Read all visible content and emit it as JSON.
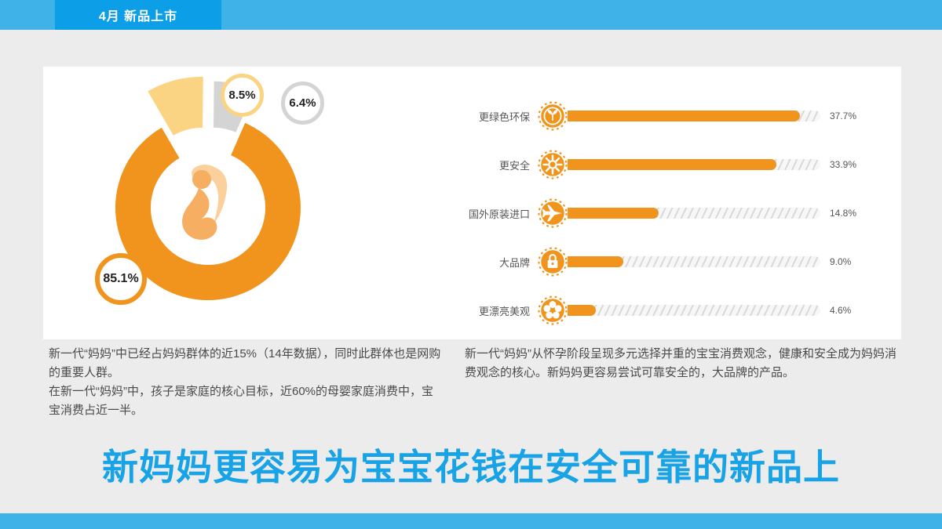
{
  "header": {
    "tag_label": "4月 新品上市"
  },
  "chart_data": [
    {
      "type": "pie",
      "donut": true,
      "labels": [
        "85.1%",
        "8.5%",
        "6.4%"
      ],
      "values": [
        85.1,
        8.5,
        6.4
      ],
      "colors": [
        "#F0941D",
        "#FAD483",
        "#D4D4D4"
      ],
      "center_image": "pregnant-woman"
    },
    {
      "type": "bar",
      "orientation": "horizontal",
      "categories": [
        "更绿色环保",
        "更安全",
        "国外原装进口",
        "大品牌",
        "更漂亮美观"
      ],
      "values": [
        37.7,
        33.9,
        14.8,
        9.0,
        4.6
      ],
      "value_labels": [
        "37.7%",
        "33.9%",
        "14.8%",
        "9.0%",
        "4.6%"
      ],
      "icons": [
        "plant-icon",
        "sun-icon",
        "plane-icon",
        "lock-icon",
        "flower-icon"
      ],
      "bar_color": "#F0941D",
      "track_style": "diagonal-hatch",
      "xlim": [
        0,
        41
      ]
    }
  ],
  "paragraphs": {
    "left": "新一代“妈妈”中已经占妈妈群体的近15%（14年数据），同时此群体也是网购的重要人群。\n在新一代“妈妈”中，孩子是家庭的核心目标，近60%的母婴家庭消费中，宝宝消费占近一半。",
    "right": "新一代“妈妈”从怀孕阶段呈现多元选择并重的宝宝消费观念，健康和安全成为妈妈消费观念的核心。新妈妈更容易尝试可靠安全的，大品牌的产品。"
  },
  "headline": "新妈妈更容易为宝宝花钱在安全可靠的新品上",
  "colors": {
    "band": "#3FB3E8",
    "tag": "#0C9FE8",
    "headline": "#18A3E6",
    "orange": "#F0941D",
    "background": "#ECECEC"
  }
}
